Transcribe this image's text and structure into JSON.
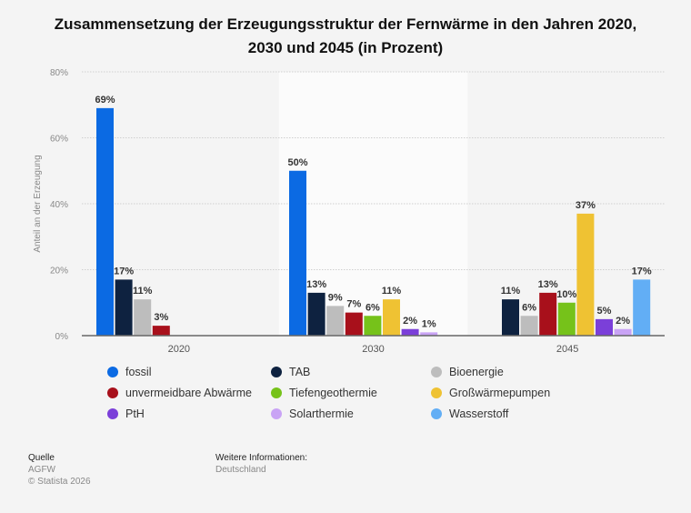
{
  "chart_data": {
    "type": "bar",
    "title": "Zusammensetzung der Erzeugungsstruktur der Fernwärme in den Jahren 2020, 2030 und 2045 (in Prozent)",
    "title_lines": [
      "Zusammensetzung der Erzeugungsstruktur der Fernwärme in den Jahren 2020,",
      "2030 und 2045 (in Prozent)"
    ],
    "xlabel": "",
    "ylabel": "Anteil an der Erzeugung",
    "ylim": [
      0,
      80
    ],
    "yticks": [
      0,
      20,
      40,
      60,
      80
    ],
    "ytick_labels": [
      "0%",
      "20%",
      "40%",
      "60%",
      "80%"
    ],
    "grid": true,
    "legend_position": "bottom",
    "categories": [
      "2020",
      "2030",
      "2045"
    ],
    "series": [
      {
        "name": "fossil",
        "color": "#0b6ae3",
        "values": [
          69,
          50,
          null
        ]
      },
      {
        "name": "TAB",
        "color": "#0e2240",
        "values": [
          17,
          13,
          11
        ]
      },
      {
        "name": "Bioenergie",
        "color": "#bdbdbd",
        "values": [
          11,
          9,
          6
        ]
      },
      {
        "name": "unvermeidbare Abwärme",
        "color": "#a8101b",
        "values": [
          3,
          7,
          13
        ]
      },
      {
        "name": "Tiefengeothermie",
        "color": "#76c21a",
        "values": [
          null,
          6,
          10
        ]
      },
      {
        "name": "Großwärmepumpen",
        "color": "#efc233",
        "values": [
          null,
          11,
          37
        ]
      },
      {
        "name": "PtH",
        "color": "#7b3fd9",
        "values": [
          null,
          2,
          5
        ]
      },
      {
        "name": "Solarthermie",
        "color": "#c9a3f5",
        "values": [
          null,
          1,
          2
        ]
      },
      {
        "name": "Wasserstoff",
        "color": "#62aef5",
        "values": [
          null,
          null,
          17
        ]
      }
    ],
    "value_label_suffix": "%"
  },
  "footer": {
    "source_heading": "Quelle",
    "source_name": "AGFW",
    "copyright": "© Statista 2026",
    "info_heading": "Weitere Informationen:",
    "info_value": "Deutschland"
  }
}
